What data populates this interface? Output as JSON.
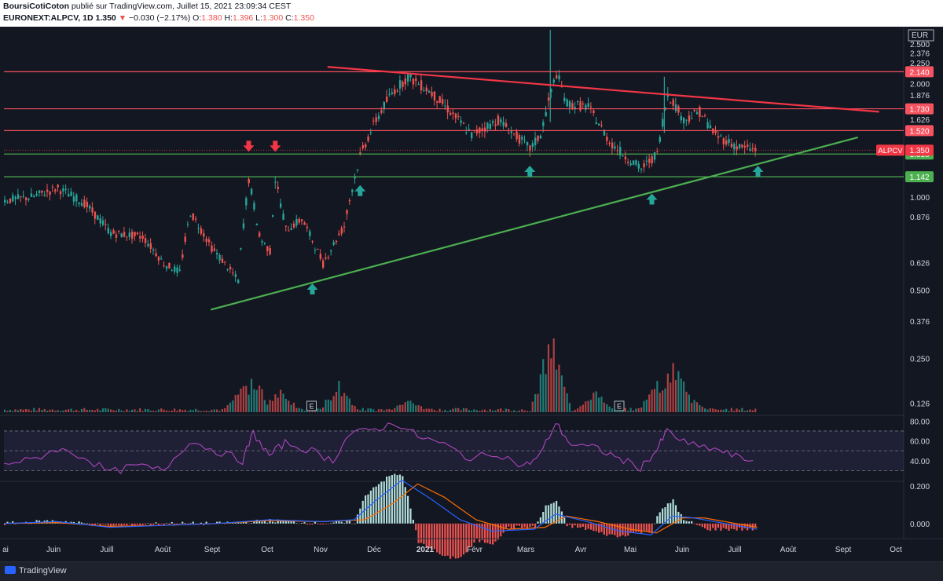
{
  "header": {
    "author": "BoursiCotiCoton",
    "published": "publié sur TradingView.com, Juillet 15, 2021 23:09:34 CEST",
    "symbol": "EURONEXT:ALPCV, 1D",
    "last": "1.350",
    "change": "−0.030 (−2.17%)",
    "o_label": "O:",
    "o": "1.380",
    "h_label": "H:",
    "h": "1.396",
    "l_label": "L:",
    "l": "1.300",
    "c_label": "C:",
    "c": "1.350"
  },
  "chart_data": {
    "type": "candlestick",
    "currency": "EUR",
    "y_ticks": [
      "2.500",
      "2.376",
      "2.250",
      "2.000",
      "1.876",
      "1.626",
      "1.000",
      "0.876",
      "0.626",
      "0.500",
      "0.376",
      "0.250",
      "0.126"
    ],
    "x_ticks": [
      "ai",
      "Juin",
      "Juill",
      "Août",
      "Sept",
      "Oct",
      "Nov",
      "Déc",
      "2021",
      "Févr",
      "Mars",
      "Avr",
      "Mai",
      "Juin",
      "Juill",
      "Août",
      "Sept",
      "Oct"
    ],
    "ylim": [
      0.0,
      2.7
    ],
    "horizontal_levels": [
      {
        "value": 2.14,
        "label": "2.140",
        "color": "#f7525f"
      },
      {
        "value": 1.73,
        "label": "1.730",
        "color": "#f7525f"
      },
      {
        "value": 1.52,
        "label": "1.520",
        "color": "#f7525f"
      },
      {
        "value": 1.318,
        "label": "1.318",
        "color": "#4caf50"
      },
      {
        "value": 1.142,
        "label": "1.142",
        "color": "#4caf50"
      }
    ],
    "price_label": {
      "name": "ALPCV",
      "value": "1.350",
      "color": "#f23645"
    },
    "trendlines": [
      {
        "color": "#f23645",
        "from": {
          "month": 6.1,
          "value": 2.2
        },
        "to": {
          "month": 16.5,
          "value": 1.7
        }
      },
      {
        "color": "#4caf50",
        "from": {
          "month": 3.9,
          "value": 0.42
        },
        "to": {
          "month": 16.1,
          "value": 1.46
        }
      }
    ],
    "price": {
      "start_month": 0,
      "end_month": 14.2,
      "path": [
        [
          0,
          0.98
        ],
        [
          0.5,
          1.0
        ],
        [
          1.0,
          1.06
        ],
        [
          1.5,
          0.96
        ],
        [
          2.0,
          0.78
        ],
        [
          2.6,
          0.76
        ],
        [
          3.0,
          0.62
        ],
        [
          3.3,
          0.58
        ],
        [
          3.5,
          0.9
        ],
        [
          3.9,
          0.7
        ],
        [
          4.4,
          0.54
        ],
        [
          4.6,
          1.12
        ],
        [
          4.8,
          0.76
        ],
        [
          5.0,
          0.68
        ],
        [
          5.1,
          1.12
        ],
        [
          5.3,
          0.8
        ],
        [
          5.6,
          0.86
        ],
        [
          6.0,
          0.62
        ],
        [
          6.4,
          0.82
        ],
        [
          6.7,
          1.3
        ],
        [
          7.0,
          1.62
        ],
        [
          7.3,
          1.9
        ],
        [
          7.6,
          2.08
        ],
        [
          8.0,
          1.92
        ],
        [
          8.4,
          1.7
        ],
        [
          8.8,
          1.48
        ],
        [
          9.3,
          1.62
        ],
        [
          9.9,
          1.36
        ],
        [
          10.1,
          1.48
        ],
        [
          10.4,
          2.12
        ],
        [
          10.6,
          1.78
        ],
        [
          11.0,
          1.75
        ],
        [
          11.4,
          1.42
        ],
        [
          11.7,
          1.3
        ],
        [
          12.0,
          1.2
        ],
        [
          12.3,
          1.32
        ],
        [
          12.5,
          1.89
        ],
        [
          12.8,
          1.62
        ],
        [
          13.1,
          1.7
        ],
        [
          13.4,
          1.48
        ],
        [
          13.8,
          1.38
        ],
        [
          14.2,
          1.35
        ]
      ]
    },
    "volume": {
      "ylim": [
        0,
        1.0
      ],
      "spikes": [
        [
          4.5,
          0.35
        ],
        [
          4.7,
          0.45
        ],
        [
          5.2,
          0.3
        ],
        [
          6.3,
          0.4
        ],
        [
          7.6,
          0.2
        ],
        [
          10.3,
          1.0
        ],
        [
          11.1,
          0.3
        ],
        [
          12.3,
          0.38
        ],
        [
          12.6,
          0.72
        ],
        [
          12.9,
          0.22
        ]
      ]
    },
    "rsi": {
      "ylim": [
        20,
        85
      ],
      "ticks": [
        "80.00",
        "60.00",
        "40.00"
      ],
      "bands": [
        30,
        50,
        70
      ],
      "path": [
        [
          0,
          38
        ],
        [
          0.5,
          40
        ],
        [
          1.0,
          52
        ],
        [
          1.5,
          44
        ],
        [
          2.0,
          28
        ],
        [
          2.5,
          35
        ],
        [
          3.0,
          30
        ],
        [
          3.5,
          60
        ],
        [
          4.0,
          50
        ],
        [
          4.5,
          40
        ],
        [
          4.7,
          68
        ],
        [
          5.0,
          45
        ],
        [
          5.3,
          58
        ],
        [
          5.8,
          50
        ],
        [
          6.2,
          40
        ],
        [
          6.5,
          66
        ],
        [
          7.0,
          72
        ],
        [
          7.4,
          78
        ],
        [
          7.8,
          65
        ],
        [
          8.3,
          56
        ],
        [
          8.8,
          42
        ],
        [
          9.3,
          48
        ],
        [
          9.8,
          34
        ],
        [
          10.1,
          45
        ],
        [
          10.4,
          78
        ],
        [
          10.7,
          56
        ],
        [
          11.2,
          52
        ],
        [
          11.6,
          42
        ],
        [
          12.0,
          33
        ],
        [
          12.3,
          50
        ],
        [
          12.5,
          70
        ],
        [
          12.9,
          56
        ],
        [
          13.4,
          52
        ],
        [
          13.8,
          44
        ],
        [
          14.2,
          39
        ]
      ]
    },
    "macd": {
      "ylim": [
        -0.08,
        0.22
      ],
      "ticks": [
        "0.200",
        "0.000"
      ],
      "macd_path": [
        [
          0,
          0.0
        ],
        [
          1,
          0.01
        ],
        [
          2,
          -0.02
        ],
        [
          3,
          -0.01
        ],
        [
          4,
          0.0
        ],
        [
          5,
          0.02
        ],
        [
          6,
          0.01
        ],
        [
          6.6,
          0.02
        ],
        [
          7.0,
          0.12
        ],
        [
          7.5,
          0.23
        ],
        [
          8.0,
          0.14
        ],
        [
          8.6,
          0.02
        ],
        [
          9.2,
          -0.04
        ],
        [
          10.0,
          -0.03
        ],
        [
          10.4,
          0.05
        ],
        [
          11.0,
          0.01
        ],
        [
          11.6,
          -0.04
        ],
        [
          12.2,
          -0.06
        ],
        [
          12.6,
          0.04
        ],
        [
          13.0,
          0.03
        ],
        [
          13.6,
          0.0
        ],
        [
          14.2,
          -0.03
        ]
      ],
      "signal_path": [
        [
          0,
          0.0
        ],
        [
          1,
          0.005
        ],
        [
          2,
          -0.015
        ],
        [
          3,
          -0.01
        ],
        [
          4,
          0.0
        ],
        [
          5,
          0.015
        ],
        [
          6,
          0.01
        ],
        [
          6.8,
          0.02
        ],
        [
          7.3,
          0.1
        ],
        [
          7.8,
          0.21
        ],
        [
          8.3,
          0.14
        ],
        [
          8.9,
          0.02
        ],
        [
          9.5,
          -0.03
        ],
        [
          10.2,
          -0.02
        ],
        [
          10.6,
          0.04
        ],
        [
          11.2,
          0.01
        ],
        [
          11.8,
          -0.03
        ],
        [
          12.3,
          -0.05
        ],
        [
          12.8,
          0.03
        ],
        [
          13.2,
          0.03
        ],
        [
          13.8,
          0.0
        ],
        [
          14.2,
          -0.02
        ]
      ],
      "macd_color": "#2962ff",
      "signal_color": "#ff6d00"
    },
    "sell_arrows": [
      4.6,
      5.1
    ],
    "buy_arrows": [
      5.8,
      6.7,
      9.9,
      12.2,
      14.2
    ],
    "earnings": [
      5.8,
      11.6
    ],
    "earnings_label": "E"
  }
}
